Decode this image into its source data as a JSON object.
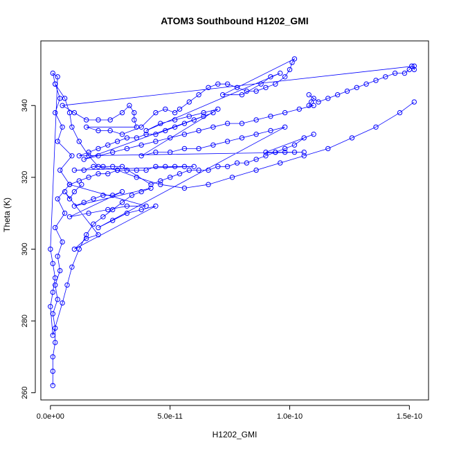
{
  "chart_data": {
    "type": "scatter",
    "title": "ATOM3 Southbound H1202_GMI",
    "xlabel": "H1202_GMI",
    "ylabel": "Theta (K)",
    "xlim": [
      -4e-12,
      1.58e-10
    ],
    "ylim": [
      258,
      358
    ],
    "x_ticks": [
      {
        "value": 0,
        "label": "0.0e+00"
      },
      {
        "value": 5e-11,
        "label": "5.0e-11"
      },
      {
        "value": 1e-10,
        "label": "1.0e-10"
      },
      {
        "value": 1.5e-10,
        "label": "1.5e-10"
      }
    ],
    "y_ticks": [
      {
        "value": 260,
        "label": "260"
      },
      {
        "value": 280,
        "label": "280"
      },
      {
        "value": 300,
        "label": "300"
      },
      {
        "value": 320,
        "label": "320"
      },
      {
        "value": 340,
        "label": "340"
      }
    ],
    "grid": false,
    "marker": "open-circle",
    "color": "#0000ff",
    "series": [
      {
        "points": [
          [
            1e-12,
            262
          ],
          [
            1e-12,
            266
          ],
          [
            1e-12,
            270
          ],
          [
            2e-12,
            274
          ],
          [
            2e-12,
            278
          ],
          [
            1e-12,
            282
          ],
          [
            3e-12,
            286
          ],
          [
            2e-12,
            290
          ],
          [
            4e-12,
            294
          ],
          [
            3e-12,
            298
          ],
          [
            5e-12,
            302
          ],
          [
            2e-12,
            306
          ],
          [
            6e-12,
            310
          ],
          [
            3e-12,
            314
          ],
          [
            8e-12,
            318
          ],
          [
            4e-12,
            322
          ],
          [
            9e-12,
            326
          ],
          [
            3e-12,
            330
          ],
          [
            5e-12,
            334
          ],
          [
            2e-12,
            338
          ],
          [
            4e-12,
            342
          ],
          [
            2e-12,
            346
          ],
          [
            1e-12,
            349
          ],
          [
            3e-12,
            348
          ],
          [
            0.0,
            300
          ],
          [
            1e-12,
            296
          ],
          [
            2e-12,
            292
          ],
          [
            1e-12,
            288
          ],
          [
            0.0,
            284
          ],
          [
            1e-12,
            276
          ],
          [
            5e-12,
            285
          ],
          [
            7e-12,
            290
          ],
          [
            9e-12,
            295
          ],
          [
            1.2e-11,
            300
          ],
          [
            1.5e-11,
            304
          ],
          [
            1.8e-11,
            307
          ],
          [
            2.2e-11,
            309
          ],
          [
            2.6e-11,
            311
          ],
          [
            3e-11,
            313
          ],
          [
            3.4e-11,
            315
          ],
          [
            3.8e-11,
            316
          ],
          [
            4.2e-11,
            317
          ],
          [
            1e-11,
            312
          ],
          [
            1.4e-11,
            313
          ],
          [
            1.8e-11,
            314
          ],
          [
            2.2e-11,
            315
          ],
          [
            2.6e-11,
            315
          ],
          [
            3e-11,
            316
          ],
          [
            8e-12,
            309
          ],
          [
            1.6e-11,
            310
          ],
          [
            2.4e-11,
            311
          ],
          [
            3.2e-11,
            312
          ],
          [
            4e-11,
            312
          ],
          [
            8e-12,
            318
          ],
          [
            1.2e-11,
            319
          ],
          [
            1.6e-11,
            320
          ],
          [
            2e-11,
            321
          ],
          [
            2.4e-11,
            321
          ],
          [
            2.8e-11,
            322
          ],
          [
            3.2e-11,
            322
          ],
          [
            3.6e-11,
            322
          ],
          [
            4e-11,
            322
          ],
          [
            4.4e-11,
            323
          ],
          [
            4.8e-11,
            323
          ],
          [
            5.2e-11,
            323
          ],
          [
            5.6e-11,
            323
          ],
          [
            6e-11,
            323
          ],
          [
            1e-11,
            322
          ],
          [
            1.4e-11,
            322
          ],
          [
            1.8e-11,
            323
          ],
          [
            2.2e-11,
            323
          ],
          [
            2.6e-11,
            323
          ],
          [
            3e-11,
            323
          ],
          [
            4.2e-11,
            318
          ],
          [
            4.6e-11,
            319
          ],
          [
            5e-11,
            320
          ],
          [
            5.4e-11,
            321
          ],
          [
            5.8e-11,
            322
          ],
          [
            6.2e-11,
            322
          ],
          [
            6.6e-11,
            322
          ],
          [
            7e-11,
            323
          ],
          [
            7.4e-11,
            323
          ],
          [
            7.8e-11,
            324
          ],
          [
            8.2e-11,
            324
          ],
          [
            8.6e-11,
            325
          ],
          [
            9e-11,
            326
          ],
          [
            9.4e-11,
            327
          ],
          [
            9.8e-11,
            328
          ],
          [
            1.02e-10,
            329
          ],
          [
            1.06e-10,
            331
          ],
          [
            1.1e-10,
            332
          ],
          [
            9e-11,
            327
          ],
          [
            9.4e-11,
            327
          ],
          [
            9.8e-11,
            327
          ],
          [
            1.02e-10,
            327
          ],
          [
            1.06e-10,
            327
          ],
          [
            1.2e-11,
            326
          ],
          [
            1.6e-11,
            327
          ],
          [
            2e-11,
            328
          ],
          [
            2.4e-11,
            329
          ],
          [
            2.8e-11,
            330
          ],
          [
            3.2e-11,
            331
          ],
          [
            3.6e-11,
            331
          ],
          [
            4e-11,
            332
          ],
          [
            4.4e-11,
            332
          ],
          [
            4.8e-11,
            333
          ],
          [
            5.2e-11,
            334
          ],
          [
            5.6e-11,
            335
          ],
          [
            6e-11,
            336
          ],
          [
            6.4e-11,
            337
          ],
          [
            6.8e-11,
            338
          ],
          [
            1.4e-11,
            325
          ],
          [
            2e-11,
            326
          ],
          [
            2.6e-11,
            327
          ],
          [
            3.2e-11,
            328
          ],
          [
            3.8e-11,
            329
          ],
          [
            4.4e-11,
            330
          ],
          [
            5e-11,
            331
          ],
          [
            5.6e-11,
            332
          ],
          [
            6.2e-11,
            333
          ],
          [
            6.8e-11,
            334
          ],
          [
            7.4e-11,
            335
          ],
          [
            8e-11,
            335
          ],
          [
            8.6e-11,
            336
          ],
          [
            9.2e-11,
            337
          ],
          [
            9.8e-11,
            338
          ],
          [
            1.04e-10,
            339
          ],
          [
            1.1e-10,
            340
          ],
          [
            1.08e-10,
            340
          ],
          [
            1.09e-10,
            341
          ],
          [
            1.1e-10,
            342
          ],
          [
            1.08e-10,
            343
          ],
          [
            1.12e-10,
            341
          ],
          [
            1.16e-10,
            342
          ],
          [
            1.2e-10,
            343
          ],
          [
            1.24e-10,
            344
          ],
          [
            1.28e-10,
            345
          ],
          [
            1.32e-10,
            346
          ],
          [
            1.36e-10,
            347
          ],
          [
            1.4e-10,
            348
          ],
          [
            1.44e-10,
            349
          ],
          [
            1.48e-10,
            349
          ],
          [
            1.5e-10,
            350
          ],
          [
            1.51e-10,
            351
          ],
          [
            1.52e-10,
            350
          ],
          [
            1.52e-10,
            351
          ],
          [
            5e-12,
            340
          ],
          [
            1e-11,
            338
          ],
          [
            1.5e-11,
            336
          ],
          [
            2e-11,
            336
          ],
          [
            2.5e-11,
            336
          ],
          [
            3e-11,
            338
          ],
          [
            3.3e-11,
            340
          ],
          [
            3.5e-11,
            338
          ],
          [
            3.5e-11,
            336
          ],
          [
            3.6e-11,
            334
          ],
          [
            1.5e-11,
            334
          ],
          [
            2e-11,
            333
          ],
          [
            2.5e-11,
            333
          ],
          [
            3e-11,
            332
          ],
          [
            3.8e-11,
            334
          ],
          [
            4.4e-11,
            338
          ],
          [
            4.8e-11,
            339
          ],
          [
            5.2e-11,
            338
          ],
          [
            5.4e-11,
            339
          ],
          [
            5.8e-11,
            341
          ],
          [
            6.2e-11,
            343
          ],
          [
            6.6e-11,
            345
          ],
          [
            7e-11,
            346
          ],
          [
            7.4e-11,
            346
          ],
          [
            7.8e-11,
            345
          ],
          [
            8.2e-11,
            344
          ],
          [
            8.6e-11,
            344
          ],
          [
            9e-11,
            345
          ],
          [
            9.4e-11,
            346
          ],
          [
            9.8e-11,
            348
          ],
          [
            1e-10,
            350
          ],
          [
            1.01e-10,
            352
          ],
          [
            1.02e-10,
            353
          ],
          [
            7.2e-11,
            343
          ],
          [
            8e-11,
            343
          ],
          [
            8.8e-11,
            346
          ],
          [
            9.2e-11,
            348
          ],
          [
            9.6e-11,
            349
          ],
          [
            4e-11,
            333
          ],
          [
            4.6e-11,
            335
          ],
          [
            5.2e-11,
            336
          ],
          [
            5.8e-11,
            337
          ],
          [
            6.4e-11,
            338
          ],
          [
            7e-11,
            339
          ],
          [
            3.8e-11,
            326
          ],
          [
            4.4e-11,
            327
          ],
          [
            5e-11,
            327
          ],
          [
            5.6e-11,
            328
          ],
          [
            6.2e-11,
            328
          ],
          [
            6.8e-11,
            329
          ],
          [
            7.4e-11,
            330
          ],
          [
            8e-11,
            331
          ],
          [
            8.6e-11,
            332
          ],
          [
            9.2e-11,
            333
          ],
          [
            9.8e-11,
            334
          ],
          [
            2e-11,
            306
          ],
          [
            2.6e-11,
            308
          ],
          [
            3.2e-11,
            310
          ],
          [
            3.8e-11,
            311
          ],
          [
            4.4e-11,
            312
          ],
          [
            1e-11,
            300
          ],
          [
            1.5e-11,
            303
          ],
          [
            2e-11,
            304
          ],
          [
            6e-12,
            316
          ],
          [
            8e-12,
            314
          ],
          [
            1e-11,
            316
          ],
          [
            1.3e-11,
            318
          ]
        ]
      },
      {
        "points": [
          [
            2e-12,
            346
          ],
          [
            6e-12,
            342
          ],
          [
            8e-12,
            338
          ],
          [
            9e-12,
            334
          ],
          [
            1.2e-11,
            330
          ],
          [
            1.6e-11,
            326
          ],
          [
            2e-11,
            323
          ],
          [
            2.8e-11,
            322
          ],
          [
            3.6e-11,
            320
          ],
          [
            4.6e-11,
            318
          ],
          [
            5.6e-11,
            317
          ],
          [
            6.6e-11,
            318
          ],
          [
            7.6e-11,
            320
          ],
          [
            8.6e-11,
            322
          ],
          [
            9.6e-11,
            324
          ],
          [
            1.06e-10,
            326
          ],
          [
            1.16e-10,
            328
          ],
          [
            1.26e-10,
            331
          ],
          [
            1.36e-10,
            334
          ],
          [
            1.46e-10,
            338
          ],
          [
            1.52e-10,
            341
          ]
        ]
      }
    ]
  }
}
